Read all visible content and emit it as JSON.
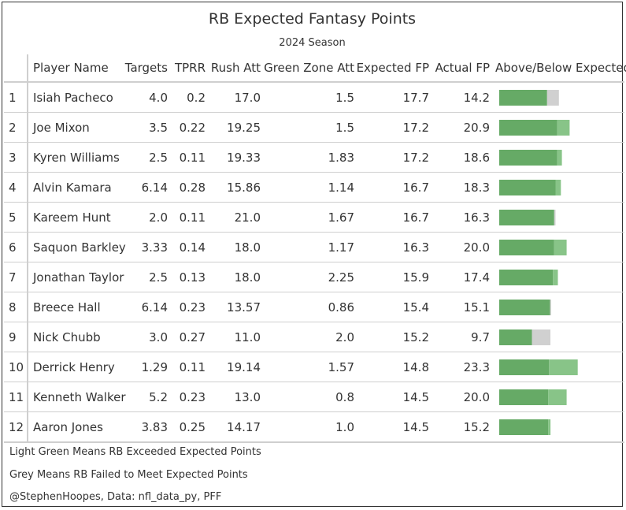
{
  "title": "RB Expected Fantasy Points",
  "subtitle": "2024 Season",
  "columns": {
    "rank": "",
    "player": "Player Name",
    "targets": "Targets",
    "tprr": "TPRR",
    "rush_att": "Rush Att",
    "green_zone_att": "Green Zone Att",
    "expected_fp": "Expected FP",
    "actual_fp": "Actual FP",
    "above_below": "Above/Below Expected"
  },
  "colors": {
    "expected": "#66aa66",
    "exceeded": "#88c488",
    "missed": "#d0d0d0"
  },
  "chart_data": {
    "type": "table",
    "rows": [
      {
        "rank": "1",
        "player": "Isiah Pacheco",
        "targets": "4.0",
        "tprr": "0.2",
        "rush_att": "17.0",
        "green_zone_att": "1.5",
        "expected_fp": "17.7",
        "actual_fp": "14.2"
      },
      {
        "rank": "2",
        "player": "Joe Mixon",
        "targets": "3.5",
        "tprr": "0.22",
        "rush_att": "19.25",
        "green_zone_att": "1.5",
        "expected_fp": "17.2",
        "actual_fp": "20.9"
      },
      {
        "rank": "3",
        "player": "Kyren Williams",
        "targets": "2.5",
        "tprr": "0.11",
        "rush_att": "19.33",
        "green_zone_att": "1.83",
        "expected_fp": "17.2",
        "actual_fp": "18.6"
      },
      {
        "rank": "4",
        "player": "Alvin Kamara",
        "targets": "6.14",
        "tprr": "0.28",
        "rush_att": "15.86",
        "green_zone_att": "1.14",
        "expected_fp": "16.7",
        "actual_fp": "18.3"
      },
      {
        "rank": "5",
        "player": "Kareem Hunt",
        "targets": "2.0",
        "tprr": "0.11",
        "rush_att": "21.0",
        "green_zone_att": "1.67",
        "expected_fp": "16.7",
        "actual_fp": "16.3"
      },
      {
        "rank": "6",
        "player": "Saquon Barkley",
        "targets": "3.33",
        "tprr": "0.14",
        "rush_att": "18.0",
        "green_zone_att": "1.17",
        "expected_fp": "16.3",
        "actual_fp": "20.0"
      },
      {
        "rank": "7",
        "player": "Jonathan Taylor",
        "targets": "2.5",
        "tprr": "0.13",
        "rush_att": "18.0",
        "green_zone_att": "2.25",
        "expected_fp": "15.9",
        "actual_fp": "17.4"
      },
      {
        "rank": "8",
        "player": "Breece Hall",
        "targets": "6.14",
        "tprr": "0.23",
        "rush_att": "13.57",
        "green_zone_att": "0.86",
        "expected_fp": "15.4",
        "actual_fp": "15.1"
      },
      {
        "rank": "9",
        "player": "Nick Chubb",
        "targets": "3.0",
        "tprr": "0.27",
        "rush_att": "11.0",
        "green_zone_att": "2.0",
        "expected_fp": "15.2",
        "actual_fp": "9.7"
      },
      {
        "rank": "10",
        "player": "Derrick Henry",
        "targets": "1.29",
        "tprr": "0.11",
        "rush_att": "19.14",
        "green_zone_att": "1.57",
        "expected_fp": "14.8",
        "actual_fp": "23.3"
      },
      {
        "rank": "11",
        "player": "Kenneth Walker",
        "targets": "5.2",
        "tprr": "0.23",
        "rush_att": "13.0",
        "green_zone_att": "0.8",
        "expected_fp": "14.5",
        "actual_fp": "20.0"
      },
      {
        "rank": "12",
        "player": "Aaron Jones",
        "targets": "3.83",
        "tprr": "0.25",
        "rush_att": "14.17",
        "green_zone_att": "1.0",
        "expected_fp": "14.5",
        "actual_fp": "15.2"
      }
    ]
  },
  "footer": {
    "note1": "Light Green Means RB Exceeded Expected Points",
    "note2": "Grey Means RB Failed to Meet Expected Points",
    "credit": "@StephenHoopes, Data: nfl_data_py, PFF"
  }
}
